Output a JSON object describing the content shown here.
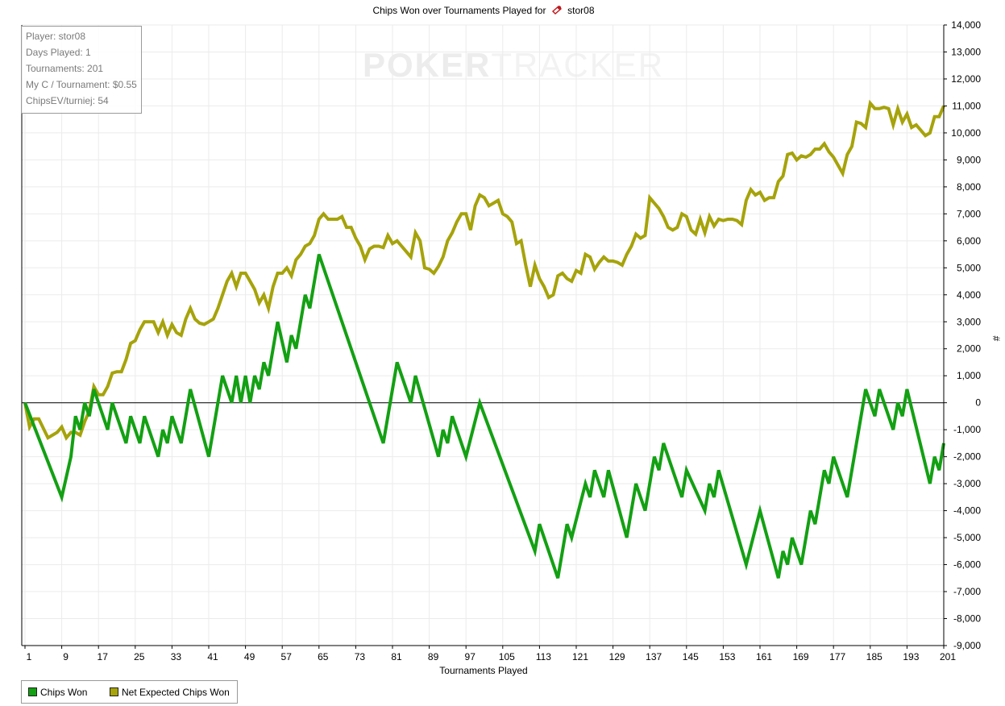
{
  "title": {
    "prefix": "Chips Won over Tournaments Played for",
    "player": "stor08"
  },
  "watermark": {
    "part1": "POKER",
    "part2": "TRACKER"
  },
  "info": {
    "player": "Player: stor08",
    "days": "Days Played: 1",
    "tournaments": "Tournaments: 201",
    "my_c": "My C / Tournament: $0.55",
    "chipsev": "ChipsEV/turniej: 54"
  },
  "legend": [
    {
      "label": "Chips Won",
      "color": "#13a013"
    },
    {
      "label": "Net Expected Chips Won",
      "color": "#a6a30b"
    }
  ],
  "chart_data": {
    "type": "line",
    "xlabel": "Tournaments Played",
    "ylabel": "#",
    "xlim": [
      0,
      202
    ],
    "ylim": [
      -9000,
      14000
    ],
    "x_ticks": [
      1,
      9,
      17,
      25,
      33,
      41,
      49,
      57,
      65,
      73,
      81,
      89,
      97,
      105,
      113,
      121,
      129,
      137,
      145,
      153,
      161,
      169,
      177,
      185,
      193,
      201
    ],
    "y_ticks": [
      -9000,
      -8000,
      -7000,
      -6000,
      -5000,
      -4000,
      -3000,
      -2000,
      -1000,
      0,
      1000,
      2000,
      3000,
      4000,
      5000,
      6000,
      7000,
      8000,
      9000,
      10000,
      11000,
      12000,
      13000,
      14000
    ],
    "grid": true,
    "legend_position": "bottom-left",
    "series": [
      {
        "name": "Chips Won",
        "color": "#13a013",
        "points": [
          [
            0,
            0
          ],
          [
            8,
            -3500
          ],
          [
            10,
            -2000
          ],
          [
            11,
            -500
          ],
          [
            12,
            -1000
          ],
          [
            13,
            0
          ],
          [
            14,
            -500
          ],
          [
            15,
            500
          ],
          [
            18,
            -1000
          ],
          [
            19,
            0
          ],
          [
            22,
            -1500
          ],
          [
            23,
            -500
          ],
          [
            25,
            -1500
          ],
          [
            26,
            -500
          ],
          [
            29,
            -2000
          ],
          [
            30,
            -1000
          ],
          [
            31,
            -1500
          ],
          [
            32,
            -500
          ],
          [
            34,
            -1500
          ],
          [
            36,
            500
          ],
          [
            40,
            -2000
          ],
          [
            43,
            1000
          ],
          [
            45,
            0
          ],
          [
            46,
            1000
          ],
          [
            47,
            0
          ],
          [
            48,
            1000
          ],
          [
            49,
            0
          ],
          [
            50,
            1000
          ],
          [
            51,
            500
          ],
          [
            52,
            1500
          ],
          [
            53,
            1000
          ],
          [
            55,
            3000
          ],
          [
            57,
            1500
          ],
          [
            58,
            2500
          ],
          [
            59,
            2000
          ],
          [
            61,
            4000
          ],
          [
            62,
            3500
          ],
          [
            64,
            5500
          ],
          [
            78,
            -1500
          ],
          [
            81,
            1500
          ],
          [
            84,
            0
          ],
          [
            85,
            1000
          ],
          [
            90,
            -2000
          ],
          [
            91,
            -1000
          ],
          [
            92,
            -1500
          ],
          [
            93,
            -500
          ],
          [
            96,
            -2000
          ],
          [
            99,
            0
          ],
          [
            111,
            -5500
          ],
          [
            112,
            -4500
          ],
          [
            116,
            -6500
          ],
          [
            118,
            -4500
          ],
          [
            119,
            -5000
          ],
          [
            122,
            -3000
          ],
          [
            123,
            -3500
          ],
          [
            124,
            -2500
          ],
          [
            126,
            -3500
          ],
          [
            127,
            -2500
          ],
          [
            131,
            -5000
          ],
          [
            133,
            -3000
          ],
          [
            135,
            -4000
          ],
          [
            137,
            -2000
          ],
          [
            138,
            -2500
          ],
          [
            139,
            -1500
          ],
          [
            143,
            -3500
          ],
          [
            144,
            -2500
          ],
          [
            148,
            -4000
          ],
          [
            149,
            -3000
          ],
          [
            150,
            -3500
          ],
          [
            151,
            -2500
          ],
          [
            157,
            -6000
          ],
          [
            160,
            -4000
          ],
          [
            164,
            -6500
          ],
          [
            165,
            -5500
          ],
          [
            166,
            -6000
          ],
          [
            167,
            -5000
          ],
          [
            169,
            -6000
          ],
          [
            171,
            -4000
          ],
          [
            172,
            -4500
          ],
          [
            174,
            -2500
          ],
          [
            175,
            -3000
          ],
          [
            176,
            -2000
          ],
          [
            179,
            -3500
          ],
          [
            183,
            500
          ],
          [
            185,
            -500
          ],
          [
            186,
            500
          ],
          [
            189,
            -1000
          ],
          [
            190,
            0
          ],
          [
            191,
            -500
          ],
          [
            192,
            500
          ],
          [
            197,
            -3000
          ],
          [
            198,
            -2000
          ],
          [
            199,
            -2500
          ],
          [
            200,
            -1500
          ]
        ]
      },
      {
        "name": "Net Expected Chips Won",
        "color": "#a6a30b",
        "points": [
          [
            0,
            0
          ],
          [
            1,
            -900
          ],
          [
            2,
            -600
          ],
          [
            3,
            -600
          ],
          [
            5,
            -1300
          ],
          [
            6,
            -1200
          ],
          [
            7,
            -1100
          ],
          [
            8,
            -900
          ],
          [
            9,
            -1300
          ],
          [
            10,
            -1100
          ],
          [
            11,
            -1100
          ],
          [
            12,
            -1200
          ],
          [
            13,
            -700
          ],
          [
            14,
            -300
          ],
          [
            15,
            600
          ],
          [
            16,
            300
          ],
          [
            17,
            300
          ],
          [
            18,
            600
          ],
          [
            19,
            1100
          ],
          [
            20,
            1150
          ],
          [
            21,
            1150
          ],
          [
            22,
            1600
          ],
          [
            23,
            2200
          ],
          [
            24,
            2300
          ],
          [
            25,
            2700
          ],
          [
            26,
            3000
          ],
          [
            27,
            3000
          ],
          [
            28,
            3000
          ],
          [
            29,
            2600
          ],
          [
            30,
            3000
          ],
          [
            31,
            2500
          ],
          [
            32,
            2900
          ],
          [
            33,
            2600
          ],
          [
            34,
            2500
          ],
          [
            35,
            3100
          ],
          [
            36,
            3500
          ],
          [
            37,
            3100
          ],
          [
            38,
            2950
          ],
          [
            39,
            2900
          ],
          [
            40,
            3000
          ],
          [
            41,
            3100
          ],
          [
            42,
            3500
          ],
          [
            43,
            4000
          ],
          [
            44,
            4500
          ],
          [
            45,
            4800
          ],
          [
            46,
            4300
          ],
          [
            47,
            4800
          ],
          [
            48,
            4800
          ],
          [
            49,
            4500
          ],
          [
            50,
            4200
          ],
          [
            51,
            3700
          ],
          [
            52,
            4000
          ],
          [
            53,
            3500
          ],
          [
            54,
            4300
          ],
          [
            55,
            4800
          ],
          [
            56,
            4800
          ],
          [
            57,
            5000
          ],
          [
            58,
            4700
          ],
          [
            59,
            5300
          ],
          [
            60,
            5500
          ],
          [
            61,
            5800
          ],
          [
            62,
            5900
          ],
          [
            63,
            6200
          ],
          [
            64,
            6800
          ],
          [
            65,
            7000
          ],
          [
            66,
            6800
          ],
          [
            67,
            6800
          ],
          [
            68,
            6800
          ],
          [
            69,
            6900
          ],
          [
            70,
            6500
          ],
          [
            71,
            6500
          ],
          [
            72,
            6100
          ],
          [
            73,
            5800
          ],
          [
            74,
            5300
          ],
          [
            75,
            5700
          ],
          [
            76,
            5800
          ],
          [
            77,
            5800
          ],
          [
            78,
            5750
          ],
          [
            79,
            6200
          ],
          [
            80,
            5900
          ],
          [
            81,
            6000
          ],
          [
            82,
            5800
          ],
          [
            83,
            5600
          ],
          [
            84,
            5400
          ],
          [
            85,
            6300
          ],
          [
            86,
            6000
          ],
          [
            87,
            5000
          ],
          [
            88,
            4950
          ],
          [
            89,
            4800
          ],
          [
            90,
            5050
          ],
          [
            91,
            5400
          ],
          [
            92,
            6000
          ],
          [
            93,
            6300
          ],
          [
            94,
            6700
          ],
          [
            95,
            7000
          ],
          [
            96,
            7000
          ],
          [
            97,
            6400
          ],
          [
            98,
            7300
          ],
          [
            99,
            7700
          ],
          [
            100,
            7600
          ],
          [
            101,
            7300
          ],
          [
            102,
            7400
          ],
          [
            103,
            7500
          ],
          [
            104,
            7000
          ],
          [
            105,
            6900
          ],
          [
            106,
            6700
          ],
          [
            107,
            5900
          ],
          [
            108,
            6000
          ],
          [
            109,
            5100
          ],
          [
            110,
            4300
          ],
          [
            111,
            5100
          ],
          [
            112,
            4600
          ],
          [
            113,
            4300
          ],
          [
            114,
            3900
          ],
          [
            115,
            4000
          ],
          [
            116,
            4700
          ],
          [
            117,
            4800
          ],
          [
            118,
            4600
          ],
          [
            119,
            4500
          ],
          [
            120,
            4900
          ],
          [
            121,
            4800
          ],
          [
            122,
            5500
          ],
          [
            123,
            5400
          ],
          [
            124,
            4950
          ],
          [
            125,
            5200
          ],
          [
            126,
            5400
          ],
          [
            127,
            5250
          ],
          [
            128,
            5250
          ],
          [
            129,
            5200
          ],
          [
            130,
            5100
          ],
          [
            131,
            5500
          ],
          [
            132,
            5800
          ],
          [
            133,
            6250
          ],
          [
            134,
            6100
          ],
          [
            135,
            6200
          ],
          [
            136,
            7600
          ],
          [
            137,
            7400
          ],
          [
            138,
            7200
          ],
          [
            139,
            6900
          ],
          [
            140,
            6500
          ],
          [
            141,
            6400
          ],
          [
            142,
            6500
          ],
          [
            143,
            7000
          ],
          [
            144,
            6900
          ],
          [
            145,
            6400
          ],
          [
            146,
            6250
          ],
          [
            147,
            6800
          ],
          [
            148,
            6300
          ],
          [
            149,
            6900
          ],
          [
            150,
            6550
          ],
          [
            151,
            6800
          ],
          [
            152,
            6750
          ],
          [
            153,
            6800
          ],
          [
            154,
            6800
          ],
          [
            155,
            6750
          ],
          [
            156,
            6600
          ],
          [
            157,
            7500
          ],
          [
            158,
            7900
          ],
          [
            159,
            7700
          ],
          [
            160,
            7800
          ],
          [
            161,
            7500
          ],
          [
            162,
            7600
          ],
          [
            163,
            7600
          ],
          [
            164,
            8200
          ],
          [
            165,
            8400
          ],
          [
            166,
            9200
          ],
          [
            167,
            9250
          ],
          [
            168,
            9000
          ],
          [
            169,
            9150
          ],
          [
            170,
            9100
          ],
          [
            171,
            9200
          ],
          [
            172,
            9400
          ],
          [
            173,
            9400
          ],
          [
            174,
            9600
          ],
          [
            175,
            9300
          ],
          [
            176,
            9100
          ],
          [
            177,
            8800
          ],
          [
            178,
            8500
          ],
          [
            179,
            9200
          ],
          [
            180,
            9500
          ],
          [
            181,
            10400
          ],
          [
            182,
            10350
          ],
          [
            183,
            10200
          ],
          [
            184,
            11100
          ],
          [
            185,
            10900
          ],
          [
            186,
            10900
          ],
          [
            187,
            10950
          ],
          [
            188,
            10900
          ],
          [
            189,
            10300
          ],
          [
            190,
            10900
          ],
          [
            191,
            10400
          ],
          [
            192,
            10700
          ],
          [
            193,
            10200
          ],
          [
            194,
            10300
          ],
          [
            195,
            10100
          ],
          [
            196,
            9900
          ],
          [
            197,
            10000
          ],
          [
            198,
            10600
          ],
          [
            199,
            10600
          ],
          [
            200,
            11000
          ]
        ]
      }
    ]
  }
}
